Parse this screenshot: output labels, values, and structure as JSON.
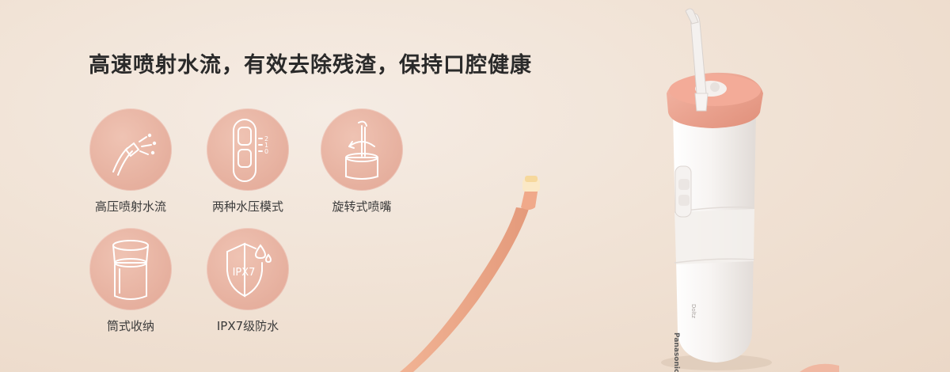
{
  "headline": "高速喷射水流，有效去除残渣，保持口腔健康",
  "features": [
    {
      "label": "高压喷射水流",
      "icon": "water-spray-icon"
    },
    {
      "label": "两种水压模式",
      "icon": "pressure-mode-icon"
    },
    {
      "label": "旋转式喷嘴",
      "icon": "rotating-nozzle-icon"
    },
    {
      "label": "筒式收纳",
      "icon": "tube-storage-icon"
    },
    {
      "label": "IPX7级防水",
      "icon": "waterproof-shield-icon"
    }
  ],
  "icon_texts": {
    "mode_levels": [
      "2",
      "1",
      "0"
    ],
    "waterproof_rating": "IPX7"
  },
  "product": {
    "brand": "Panasonic",
    "model_mark": "Doltz"
  },
  "colors": {
    "accent_pink": "#e8a08d",
    "badge_fill": "#e4ab99",
    "background": "#f1e3d6",
    "toothbrush": "#eaa88a"
  }
}
